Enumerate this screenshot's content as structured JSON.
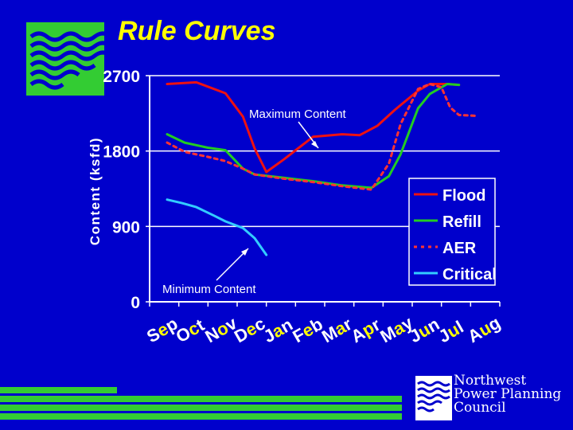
{
  "slide": {
    "title": "Rule Curves",
    "org_name_lines": [
      "Northwest",
      "Power Planning",
      "Council"
    ],
    "logo_icon": "wave-logo-icon",
    "colors": {
      "background": "#0000cc",
      "title": "#ffff00",
      "plot_area": "#0000cc"
    }
  },
  "chart_data": {
    "type": "line",
    "title": "",
    "xlabel": "",
    "ylabel": "Content (ksfd)",
    "ylim": [
      0,
      2700
    ],
    "yticks": [
      "0",
      "900",
      "1800",
      "2700"
    ],
    "ytick_values": [
      0,
      900,
      1800,
      2700
    ],
    "categories": [
      "Sep",
      "Oct",
      "Nov",
      "Dec",
      "Jan",
      "Feb",
      "Mar",
      "Apr",
      "May",
      "Jun",
      "Jul",
      "Aug"
    ],
    "grid": "horizontal",
    "legend_position": "right",
    "series": [
      {
        "name": "Flood",
        "color": "#ee1111",
        "dash": "solid",
        "points": [
          [
            0,
            2600
          ],
          [
            1,
            2620
          ],
          [
            2,
            2490
          ],
          [
            2.6,
            2210
          ],
          [
            3,
            1830
          ],
          [
            3.4,
            1550
          ],
          [
            4,
            1700
          ],
          [
            5,
            1970
          ],
          [
            6,
            2000
          ],
          [
            6.6,
            1990
          ],
          [
            7.2,
            2100
          ],
          [
            7.8,
            2290
          ],
          [
            8.6,
            2520
          ],
          [
            9,
            2600
          ],
          [
            9.6,
            2600
          ],
          [
            10,
            2590
          ]
        ]
      },
      {
        "name": "Refill",
        "color": "#22cc22",
        "dash": "solid",
        "points": [
          [
            0,
            2000
          ],
          [
            0.6,
            1900
          ],
          [
            1.4,
            1840
          ],
          [
            2,
            1810
          ],
          [
            2.6,
            1590
          ],
          [
            3,
            1520
          ],
          [
            4,
            1480
          ],
          [
            5,
            1440
          ],
          [
            6,
            1390
          ],
          [
            7,
            1360
          ],
          [
            7.6,
            1500
          ],
          [
            8,
            1760
          ],
          [
            8.6,
            2310
          ],
          [
            9,
            2480
          ],
          [
            9.6,
            2600
          ],
          [
            10,
            2590
          ]
        ]
      },
      {
        "name": "AER",
        "color": "#ff3333",
        "dash": "dotted",
        "points": [
          [
            0,
            1900
          ],
          [
            0.6,
            1790
          ],
          [
            1.4,
            1730
          ],
          [
            2,
            1680
          ],
          [
            2.6,
            1590
          ],
          [
            3,
            1520
          ],
          [
            4,
            1470
          ],
          [
            5,
            1430
          ],
          [
            6,
            1380
          ],
          [
            7,
            1340
          ],
          [
            7.6,
            1650
          ],
          [
            8,
            2120
          ],
          [
            8.6,
            2540
          ],
          [
            9,
            2600
          ],
          [
            9.4,
            2560
          ],
          [
            9.7,
            2320
          ],
          [
            10,
            2230
          ],
          [
            10.6,
            2220
          ]
        ]
      },
      {
        "name": "Critical",
        "color": "#33ccff",
        "dash": "solid",
        "points": [
          [
            0,
            1220
          ],
          [
            0.5,
            1180
          ],
          [
            1,
            1130
          ],
          [
            1.6,
            1030
          ],
          [
            2,
            960
          ],
          [
            2.6,
            880
          ],
          [
            3,
            760
          ],
          [
            3.4,
            560
          ]
        ]
      }
    ],
    "annotations": [
      {
        "text": "Maximum Content"
      },
      {
        "text": "Minimum Content"
      }
    ]
  }
}
